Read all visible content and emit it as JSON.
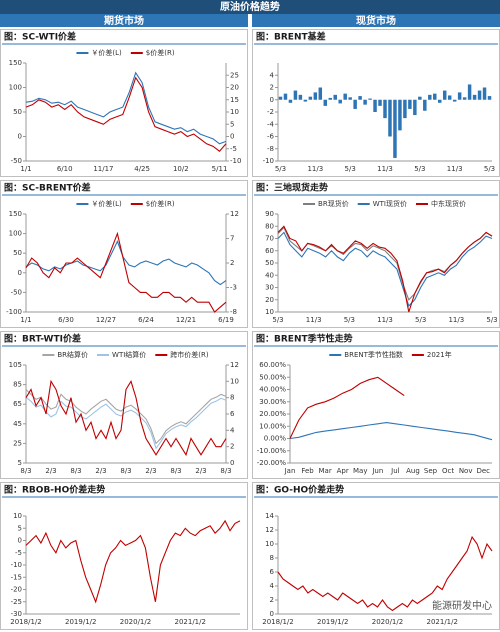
{
  "header": {
    "title": "原油价格趋势",
    "left": "期货市场",
    "right": "现货市场",
    "watermark": "能源研发中心"
  },
  "chart_data": [
    {
      "type": "line",
      "title": "图：SC-WTI价差",
      "legend": "top",
      "categories": [
        "1/1",
        null,
        null,
        null,
        null,
        null,
        "6/10",
        null,
        null,
        null,
        null,
        null,
        "11/17",
        null,
        null,
        null,
        null,
        null,
        "4/25",
        null,
        null,
        null,
        null,
        null,
        "10/2",
        null,
        null,
        null,
        null,
        null,
        "5/11",
        null
      ],
      "series": [
        {
          "name": "￥价差(L)",
          "color": "#2e75b6",
          "values": [
            70,
            72,
            78,
            75,
            68,
            70,
            65,
            72,
            60,
            55,
            50,
            45,
            40,
            50,
            55,
            60,
            90,
            130,
            110,
            60,
            30,
            25,
            20,
            15,
            18,
            10,
            15,
            5,
            0,
            -5,
            -15,
            -10
          ]
        },
        {
          "name": "$价差(R)",
          "color": "#c00000",
          "axis": "y2",
          "values": [
            12,
            13,
            15,
            14,
            12,
            13,
            11,
            13,
            10,
            8,
            7,
            6,
            5,
            7,
            8,
            9,
            16,
            24,
            20,
            10,
            4,
            3,
            2,
            1,
            2,
            0,
            1,
            -1,
            -3,
            -4,
            -6,
            -3
          ]
        }
      ],
      "ylim": [
        -50,
        150
      ],
      "yticks": [
        -50,
        0,
        50,
        100,
        150
      ],
      "y2lim": [
        -10,
        30
      ],
      "y2ticks": [
        -10,
        -5,
        0,
        5,
        10,
        15,
        20,
        25
      ]
    },
    {
      "type": "bar",
      "title": "图：BRENT基差",
      "color": "#2e75b6",
      "categories": [
        "5/3",
        null,
        null,
        null,
        null,
        null,
        null,
        "11/3",
        null,
        null,
        null,
        null,
        null,
        null,
        "5/3",
        null,
        null,
        null,
        null,
        null,
        null,
        "11/3",
        null,
        null,
        null,
        null,
        null,
        null,
        "5/3",
        null,
        null,
        null,
        null,
        null,
        null,
        "11/3",
        null,
        null,
        null,
        null,
        null,
        null,
        "5/3"
      ],
      "values": [
        0.5,
        1,
        -0.5,
        1.5,
        0.8,
        -0.3,
        0.5,
        1.2,
        2,
        -1,
        0.3,
        0.8,
        -0.6,
        1,
        0.4,
        -1.5,
        0.6,
        -0.8,
        0.2,
        -2,
        -1,
        -3,
        -6,
        -9.5,
        -5,
        -3,
        -1.5,
        -2.5,
        0.5,
        -1.8,
        0.8,
        1,
        -0.5,
        1.5,
        0.7,
        -0.3,
        1.2,
        0.4,
        2.5,
        0.8,
        1.5,
        2,
        0.6
      ],
      "ylim": [
        -10,
        6
      ],
      "yticks": [
        -10,
        -8,
        -6,
        -4,
        -2,
        0,
        2,
        4
      ]
    },
    {
      "type": "line",
      "title": "图：SC-BRENT价差",
      "legend": "top",
      "categories": [
        "1/1",
        null,
        null,
        null,
        null,
        null,
        null,
        "6/30",
        null,
        null,
        null,
        null,
        null,
        null,
        "12/27",
        null,
        null,
        null,
        null,
        null,
        null,
        "6/24",
        null,
        null,
        null,
        null,
        null,
        null,
        "12/21",
        null,
        null,
        null,
        null,
        null,
        null,
        "6/19"
      ],
      "series": [
        {
          "name": "￥价差(L)",
          "color": "#2e75b6",
          "values": [
            15,
            25,
            20,
            10,
            5,
            15,
            10,
            20,
            25,
            30,
            20,
            15,
            10,
            5,
            20,
            50,
            80,
            40,
            20,
            15,
            25,
            30,
            25,
            20,
            30,
            35,
            25,
            20,
            15,
            25,
            20,
            10,
            0,
            -20,
            -30,
            -20
          ]
        },
        {
          "name": "$价差(R)",
          "color": "#c00000",
          "axis": "y2",
          "values": [
            1,
            3,
            2,
            0,
            -1,
            1,
            0,
            2,
            2,
            3,
            2,
            1,
            0,
            -1,
            2,
            5,
            8,
            3,
            -2,
            -3,
            -4,
            -4,
            -5,
            -5,
            -4,
            -4,
            -5,
            -5,
            -6,
            -5,
            -6,
            -6,
            -6,
            -8,
            -7,
            -6
          ]
        }
      ],
      "ylim": [
        -100,
        150
      ],
      "yticks": [
        -100,
        -50,
        0,
        50,
        100,
        150
      ],
      "y2lim": [
        -8,
        12
      ],
      "y2ticks": [
        -8,
        -3,
        2,
        7,
        12
      ]
    },
    {
      "type": "line",
      "title": "图：三地现货走势",
      "legend": "top",
      "categories": [
        "5/3",
        null,
        null,
        null,
        null,
        null,
        "11/3",
        null,
        null,
        null,
        null,
        null,
        "5/3",
        null,
        null,
        null,
        null,
        null,
        "11/3",
        null,
        null,
        null,
        null,
        null,
        "5/3",
        null,
        null,
        null,
        null,
        null,
        "11/3",
        null,
        null,
        null,
        null,
        null,
        "5/3"
      ],
      "series": [
        {
          "name": "BR现货价",
          "color": "#7f7f7f",
          "values": [
            74,
            79,
            68,
            64,
            60,
            66,
            64,
            62,
            60,
            64,
            60,
            57,
            62,
            66,
            65,
            60,
            64,
            62,
            60,
            55,
            50,
            33,
            20,
            25,
            34,
            42,
            44,
            45,
            43,
            48,
            52,
            58,
            63,
            67,
            70,
            75,
            72
          ]
        },
        {
          "name": "WTI现货价",
          "color": "#2e75b6",
          "values": [
            70,
            75,
            65,
            60,
            55,
            62,
            60,
            58,
            55,
            60,
            55,
            52,
            58,
            62,
            60,
            55,
            60,
            57,
            55,
            50,
            45,
            30,
            15,
            20,
            30,
            38,
            40,
            42,
            40,
            45,
            48,
            55,
            60,
            63,
            67,
            72,
            70
          ]
        },
        {
          "name": "中东现货价",
          "color": "#c00000",
          "values": [
            75,
            80,
            70,
            68,
            60,
            66,
            65,
            63,
            60,
            65,
            60,
            58,
            63,
            68,
            66,
            62,
            66,
            63,
            62,
            58,
            52,
            35,
            10,
            25,
            35,
            42,
            43,
            45,
            42,
            48,
            52,
            58,
            63,
            67,
            70,
            75,
            72
          ]
        }
      ],
      "ylim": [
        10,
        90
      ],
      "yticks": [
        10,
        20,
        30,
        40,
        50,
        60,
        70,
        80,
        90
      ]
    },
    {
      "type": "line",
      "title": "图：BRT-WTI价差",
      "legend": "top",
      "categories": [
        "8/3",
        null,
        null,
        null,
        null,
        "2/3",
        null,
        null,
        null,
        null,
        "8/3",
        null,
        null,
        null,
        null,
        "2/3",
        null,
        null,
        null,
        null,
        "8/3",
        null,
        null,
        null,
        null,
        "2/3",
        null,
        null,
        null,
        null,
        "8/3",
        null,
        null,
        null,
        null,
        "2/3",
        null,
        null,
        null,
        null,
        "8/3"
      ],
      "series": [
        {
          "name": "BR结算价",
          "color": "#a5a5a5",
          "values": [
            80,
            75,
            70,
            72,
            65,
            60,
            62,
            75,
            70,
            68,
            62,
            58,
            55,
            60,
            64,
            68,
            70,
            65,
            60,
            58,
            62,
            64,
            60,
            55,
            50,
            40,
            25,
            30,
            38,
            42,
            45,
            47,
            45,
            50,
            55,
            60,
            65,
            70,
            72,
            75,
            73
          ]
        },
        {
          "name": "WTI结算价",
          "color": "#9dc3e6",
          "values": [
            72,
            68,
            62,
            64,
            57,
            52,
            55,
            68,
            63,
            62,
            57,
            52,
            50,
            54,
            58,
            62,
            65,
            60,
            55,
            53,
            57,
            59,
            56,
            51,
            46,
            36,
            20,
            27,
            35,
            39,
            42,
            44,
            42,
            47,
            51,
            56,
            61,
            66,
            68,
            71,
            69
          ]
        },
        {
          "name": "跨市价差(R)",
          "color": "#c00000",
          "axis": "y2",
          "values": [
            8,
            9,
            7,
            8,
            6,
            10,
            9,
            7,
            6,
            8,
            5,
            6,
            4,
            5,
            3,
            4,
            3,
            5,
            3,
            4,
            9,
            10,
            8,
            5,
            3,
            2,
            1,
            2,
            3,
            2,
            3,
            2,
            1,
            3,
            2,
            1,
            2,
            3,
            2,
            2,
            3
          ]
        }
      ],
      "ylim": [
        5,
        105
      ],
      "yticks": [
        5,
        25,
        45,
        65,
        85,
        105
      ],
      "y2lim": [
        0,
        12
      ],
      "y2ticks": [
        0,
        2,
        4,
        6,
        8,
        10,
        12
      ]
    },
    {
      "type": "line",
      "title": "图：BRENT季节性走势",
      "legend": "top",
      "categories": [
        "Jan",
        null,
        "Feb",
        null,
        "Mar",
        null,
        "Apr",
        null,
        "May",
        null,
        "Jun",
        null,
        "Jul",
        null,
        "Aug",
        null,
        "Sep",
        null,
        "Oct",
        null,
        "Nov",
        null,
        "Dec",
        null
      ],
      "series": [
        {
          "name": "BRENT季节性指数",
          "color": "#2e75b6",
          "values": [
            0,
            1,
            3,
            5,
            6,
            7,
            8,
            9,
            10,
            11,
            12,
            13,
            12,
            11,
            10,
            9,
            8,
            7,
            6,
            5,
            4,
            3,
            1,
            -1
          ]
        },
        {
          "name": "2021年",
          "color": "#c00000",
          "values": [
            0,
            15,
            25,
            28,
            30,
            33,
            37,
            40,
            45,
            48,
            50,
            45,
            40,
            35,
            null,
            null,
            null,
            null,
            null,
            null,
            null,
            null,
            null,
            null
          ]
        }
      ],
      "ylim": [
        -20,
        60
      ],
      "yticks": [
        {
          "value": -20,
          "label": "-20.00%"
        },
        {
          "value": -10,
          "label": "-10.00%"
        },
        {
          "value": 0,
          "label": "0.00%"
        },
        {
          "value": 10,
          "label": "10.00%"
        },
        {
          "value": 20,
          "label": "20.00%"
        },
        {
          "value": 30,
          "label": "30.00%"
        },
        {
          "value": 40,
          "label": "40.00%"
        },
        {
          "value": 50,
          "label": "50.00%"
        },
        {
          "value": 60,
          "label": "60.00%"
        }
      ]
    },
    {
      "type": "line",
      "title": "图：RBOB-HO价差走势",
      "color": "#c00000",
      "categories": [
        "2018/1/2",
        null,
        null,
        null,
        null,
        null,
        null,
        null,
        null,
        null,
        null,
        "2019/1/2",
        null,
        null,
        null,
        null,
        null,
        null,
        null,
        null,
        null,
        null,
        "2020/1/2",
        null,
        null,
        null,
        null,
        null,
        null,
        null,
        null,
        null,
        null,
        "2021/1/2",
        null,
        null,
        null,
        null,
        null,
        null,
        null,
        null,
        null,
        null
      ],
      "values": [
        -2,
        0,
        2,
        -1,
        3,
        -2,
        -5,
        0,
        -3,
        -1,
        0,
        -8,
        -15,
        -20,
        -25,
        -18,
        -10,
        -5,
        -3,
        0,
        -2,
        -1,
        0,
        2,
        -3,
        -15,
        -25,
        -10,
        -5,
        0,
        3,
        2,
        5,
        3,
        2,
        4,
        5,
        6,
        3,
        5,
        8,
        4,
        7,
        8
      ],
      "ylim": [
        -30,
        10
      ],
      "yticks": [
        -30,
        -25,
        -20,
        -15,
        -10,
        -5,
        0,
        5,
        10
      ]
    },
    {
      "type": "line",
      "title": "图：GO-HO价差走势",
      "color": "#c00000",
      "categories": [
        "2018/1/2",
        null,
        null,
        null,
        null,
        null,
        null,
        null,
        null,
        null,
        null,
        "2019/1/2",
        null,
        null,
        null,
        null,
        null,
        null,
        null,
        null,
        null,
        null,
        "2020/1/2",
        null,
        null,
        null,
        null,
        null,
        null,
        null,
        null,
        null,
        null,
        "2021/1/2",
        null,
        null,
        null,
        null,
        null,
        null,
        null,
        null,
        null,
        null
      ],
      "values": [
        6,
        5,
        4.5,
        4,
        3.5,
        4,
        3,
        3.5,
        3,
        2.5,
        3,
        2.5,
        2,
        3,
        2.5,
        2,
        1.5,
        2,
        1,
        1.5,
        1,
        2,
        1,
        0.5,
        1,
        1.5,
        1,
        2,
        1.5,
        2,
        2.5,
        3,
        4,
        3.5,
        5,
        6,
        7,
        8,
        9,
        11,
        10,
        8,
        10,
        9
      ],
      "ylim": [
        0,
        14
      ],
      "yticks": [
        0,
        2,
        4,
        6,
        8,
        10,
        12,
        14
      ]
    }
  ]
}
